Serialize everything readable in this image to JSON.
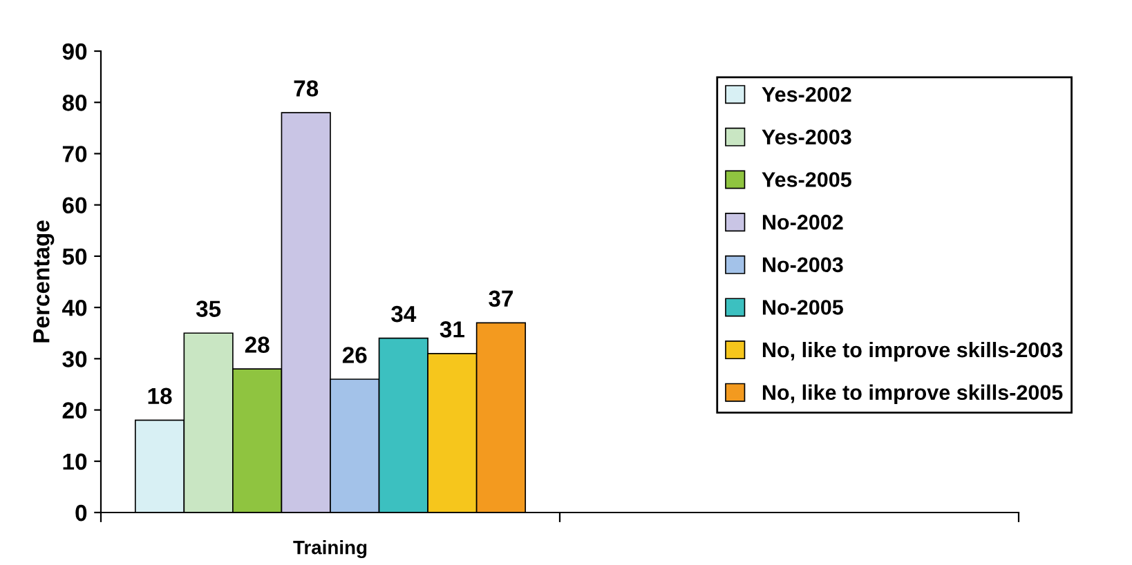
{
  "chart_data": {
    "type": "bar",
    "ylabel": "Percentage",
    "categories": [
      "Training",
      null
    ],
    "series": [
      {
        "name": "Yes-2002",
        "color": "#d8f0f4",
        "values": [
          18,
          null
        ]
      },
      {
        "name": "Yes-2003",
        "color": "#c9e6c3",
        "values": [
          35,
          null
        ]
      },
      {
        "name": "Yes-2005",
        "color": "#8fc440",
        "values": [
          28,
          null
        ]
      },
      {
        "name": "No-2002",
        "color": "#c9c5e5",
        "values": [
          78,
          null
        ]
      },
      {
        "name": "No-2003",
        "color": "#a3c2e9",
        "values": [
          26,
          null
        ]
      },
      {
        "name": "No-2005",
        "color": "#3cc0c0",
        "values": [
          34,
          null
        ]
      },
      {
        "name": "No, like to improve skills-2003",
        "color": "#f6c61c",
        "values": [
          31,
          null
        ]
      },
      {
        "name": "No, like to improve skills-2005",
        "color": "#f39a1f",
        "values": [
          37,
          null
        ]
      }
    ],
    "ylim": [
      0,
      90
    ],
    "yticks": [
      0,
      10,
      20,
      30,
      40,
      50,
      60,
      70,
      80,
      90
    ],
    "grid": false,
    "legend": "right",
    "data_labels": true
  }
}
